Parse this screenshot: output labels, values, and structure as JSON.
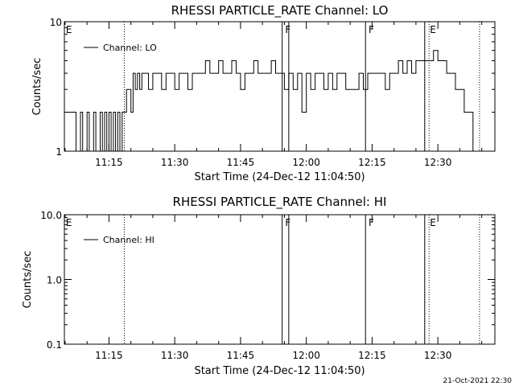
{
  "footer_timestamp": "21-Oct-2021 22:30",
  "chart_data": [
    {
      "type": "line",
      "title": "RHESSI PARTICLE_RATE Channel: LO",
      "xlabel": "Start Time (24-Dec-12 11:04:50)",
      "ylabel": "Counts/sec",
      "yscale": "log",
      "xlim": [
        "11:04:50",
        "12:43:00"
      ],
      "ylim": [
        1,
        10
      ],
      "x_ticks": [
        "11:15",
        "11:30",
        "11:45",
        "12:00",
        "12:15",
        "12:30"
      ],
      "y_ticks": [
        "1",
        "10"
      ],
      "legend": {
        "entry": "Channel: LO",
        "placement": "top-left"
      },
      "dotted_lines": [
        "11:18:30",
        "12:28:00",
        "12:39:30"
      ],
      "solid_lines": [
        "11:54:30",
        "11:56:00",
        "12:13:30",
        "12:27:00"
      ],
      "markers": [
        {
          "time": "11:05:00",
          "text": "E"
        },
        {
          "time": "11:55:00",
          "text": "F"
        },
        {
          "time": "12:14:00",
          "text": "F"
        },
        {
          "time": "12:28:00",
          "text": "E"
        }
      ],
      "series": [
        {
          "x": [
            "11:04:50",
            "11:07:00",
            "11:07:30",
            "11:08:30",
            "11:09:00",
            "11:10:00",
            "11:10:30",
            "11:11:30",
            "11:12:00",
            "11:13:00",
            "11:13:30",
            "11:14:00",
            "11:14:30",
            "11:15:00",
            "11:15:30",
            "11:16:00",
            "11:16:30",
            "11:17:00",
            "11:17:30",
            "11:18:00",
            "11:18:30",
            "11:19:00",
            "11:19:30",
            "11:20:00",
            "11:20:30",
            "11:21:00",
            "11:21:30",
            "11:22:00",
            "11:22:30",
            "11:23:00",
            "11:24:00",
            "11:25:00",
            "11:26:00",
            "11:27:00",
            "11:28:00",
            "11:29:00",
            "11:30:00",
            "11:31:00",
            "11:32:00",
            "11:33:00",
            "11:34:00",
            "11:35:00",
            "11:36:00",
            "11:37:00",
            "11:38:00",
            "11:39:00",
            "11:40:00",
            "11:41:00",
            "11:42:00",
            "11:43:00",
            "11:44:00",
            "11:45:00",
            "11:46:00",
            "11:47:00",
            "11:48:00",
            "11:49:00",
            "11:50:00",
            "11:51:00",
            "11:52:00",
            "11:53:00",
            "11:54:00",
            "11:55:00",
            "11:56:00",
            "11:57:00",
            "11:58:00",
            "11:59:00",
            "12:00:00",
            "12:01:00",
            "12:02:00",
            "12:03:00",
            "12:04:00",
            "12:05:00",
            "12:06:00",
            "12:07:00",
            "12:08:00",
            "12:09:00",
            "12:10:00",
            "12:11:00",
            "12:12:00",
            "12:13:00",
            "12:14:00",
            "12:15:00",
            "12:16:00",
            "12:17:00",
            "12:18:00",
            "12:19:00",
            "12:20:00",
            "12:21:00",
            "12:22:00",
            "12:23:00",
            "12:24:00",
            "12:25:00",
            "12:26:00",
            "12:27:00",
            "12:28:00",
            "12:29:00",
            "12:30:00",
            "12:31:00",
            "12:32:00",
            "12:33:00",
            "12:34:00",
            "12:35:00",
            "12:36:00",
            "12:37:00",
            "12:38:00"
          ],
          "y": [
            2,
            2,
            1,
            2,
            1,
            2,
            1,
            2,
            1,
            2,
            1,
            2,
            1,
            2,
            1,
            2,
            1,
            2,
            1,
            2,
            2,
            3,
            3,
            2,
            4,
            3,
            4,
            3,
            4,
            4,
            3,
            4,
            4,
            3,
            4,
            4,
            3,
            4,
            4,
            3,
            4,
            4,
            4,
            5,
            4,
            4,
            5,
            4,
            4,
            5,
            4,
            3,
            4,
            4,
            5,
            4,
            4,
            4,
            5,
            4,
            4,
            3,
            4,
            3,
            4,
            2,
            4,
            3,
            4,
            4,
            3,
            4,
            3,
            4,
            4,
            3,
            3,
            3,
            4,
            3,
            4,
            4,
            4,
            4,
            3,
            4,
            4,
            5,
            4,
            5,
            4,
            5,
            5,
            5,
            5,
            6,
            5,
            5,
            4,
            4,
            3,
            3,
            2,
            2,
            1
          ]
        }
      ]
    },
    {
      "type": "line",
      "title": "RHESSI PARTICLE_RATE Channel: HI",
      "xlabel": "Start Time (24-Dec-12 11:04:50)",
      "ylabel": "Counts/sec",
      "yscale": "log",
      "xlim": [
        "11:04:50",
        "12:43:00"
      ],
      "ylim": [
        0.1,
        10
      ],
      "x_ticks": [
        "11:15",
        "11:30",
        "11:45",
        "12:00",
        "12:15",
        "12:30"
      ],
      "y_ticks": [
        "0.1",
        "1.0",
        "10.0"
      ],
      "legend": {
        "entry": "Channel: HI",
        "placement": "top-left"
      },
      "dotted_lines": [
        "11:18:30",
        "12:28:00",
        "12:39:30"
      ],
      "solid_lines": [
        "11:54:30",
        "11:56:00",
        "12:13:30",
        "12:27:00"
      ],
      "markers": [
        {
          "time": "11:05:00",
          "text": "E"
        },
        {
          "time": "11:55:00",
          "text": "F"
        },
        {
          "time": "12:14:00",
          "text": "F"
        },
        {
          "time": "12:28:00",
          "text": "E"
        }
      ],
      "series": [
        {
          "x": [],
          "y": []
        }
      ]
    }
  ]
}
